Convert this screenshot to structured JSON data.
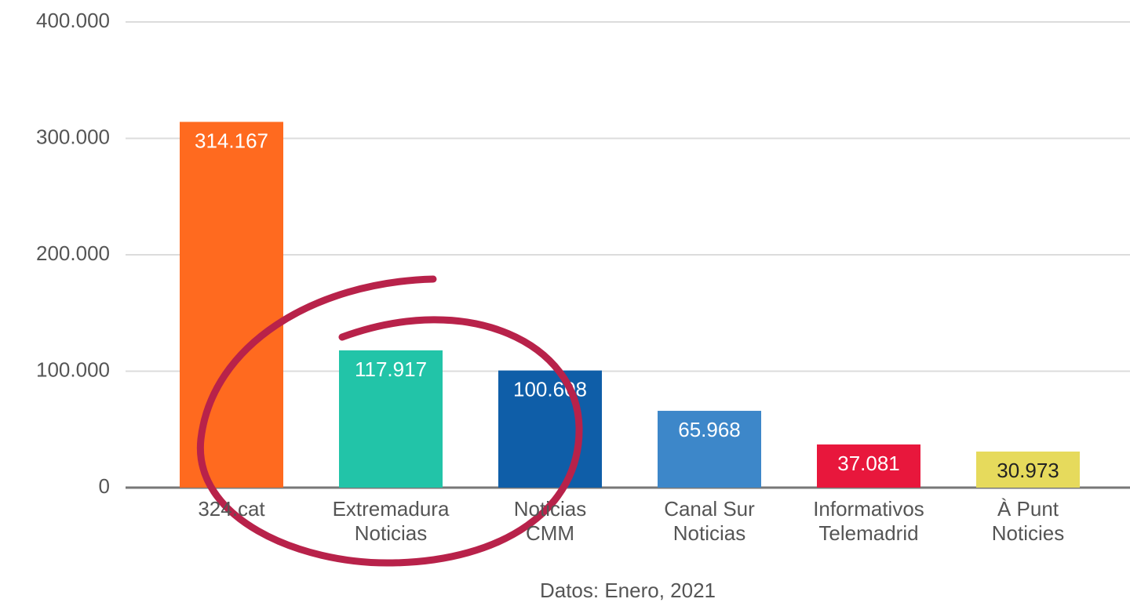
{
  "chart_data": {
    "type": "bar",
    "categories": [
      "324.cat",
      "Extremadura\nNoticias",
      "Noticias\nCMM",
      "Canal Sur\nNoticias",
      "Informativos\nTelemadrid",
      "À Punt\nNoticies"
    ],
    "values": [
      314167,
      117917,
      100608,
      65968,
      37081,
      30973
    ],
    "value_labels": [
      "314.167",
      "117.917",
      "100.608",
      "65.968",
      "37.081",
      "30.973"
    ],
    "colors": [
      "#ff6a1f",
      "#22c4a8",
      "#0f5ea8",
      "#3d87c9",
      "#e8173c",
      "#e6da5c"
    ],
    "ylim": [
      0,
      400000
    ],
    "yticks": [
      0,
      {
        "value": 100000,
        "label": "100.000"
      },
      {
        "value": 200000,
        "label": "200.000"
      },
      {
        "value": 300000,
        "label": "300.000"
      },
      {
        "value": 400000,
        "label": "400.000"
      }
    ],
    "grid": true,
    "xlabel": "Datos: Enero, 2021"
  }
}
